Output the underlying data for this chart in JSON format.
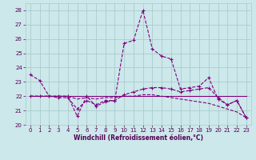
{
  "xlabel": "Windchill (Refroidissement éolien,°C)",
  "background_color": "#cce8ea",
  "grid_color": "#aacccc",
  "line_color": "#800080",
  "xlim": [
    -0.5,
    23.5
  ],
  "ylim": [
    20,
    28.5
  ],
  "yticks": [
    20,
    21,
    22,
    23,
    24,
    25,
    26,
    27,
    28
  ],
  "xticks": [
    0,
    1,
    2,
    3,
    4,
    5,
    6,
    7,
    8,
    9,
    10,
    11,
    12,
    13,
    14,
    15,
    16,
    17,
    18,
    19,
    20,
    21,
    22,
    23
  ],
  "hours": [
    0,
    1,
    2,
    3,
    4,
    5,
    6,
    7,
    8,
    9,
    10,
    11,
    12,
    13,
    14,
    15,
    16,
    17,
    18,
    19,
    20,
    21,
    22,
    23
  ],
  "line1": [
    23.5,
    23.1,
    22.0,
    22.0,
    22.0,
    20.6,
    22.0,
    21.3,
    21.6,
    21.7,
    25.7,
    25.9,
    28.0,
    25.3,
    24.8,
    24.6,
    22.5,
    22.6,
    22.7,
    23.3,
    21.8,
    21.4,
    21.7,
    20.5
  ],
  "line2": [
    22.0,
    22.0,
    22.0,
    22.0,
    22.0,
    22.0,
    22.0,
    22.0,
    22.0,
    22.0,
    22.0,
    22.0,
    22.0,
    22.0,
    22.0,
    22.0,
    22.0,
    22.0,
    22.0,
    22.0,
    22.0,
    22.0,
    22.0,
    22.0
  ],
  "line3": [
    22.0,
    22.0,
    22.0,
    21.9,
    21.9,
    21.1,
    21.7,
    21.4,
    21.7,
    21.7,
    22.1,
    22.3,
    22.5,
    22.6,
    22.6,
    22.5,
    22.3,
    22.4,
    22.5,
    22.6,
    21.9,
    21.4,
    21.7,
    20.5
  ],
  "line4": [
    22.0,
    22.0,
    22.0,
    22.0,
    22.0,
    21.8,
    21.9,
    21.8,
    21.9,
    21.9,
    22.0,
    22.0,
    22.1,
    22.1,
    22.0,
    21.9,
    21.8,
    21.7,
    21.6,
    21.5,
    21.3,
    21.1,
    20.9,
    20.5
  ]
}
